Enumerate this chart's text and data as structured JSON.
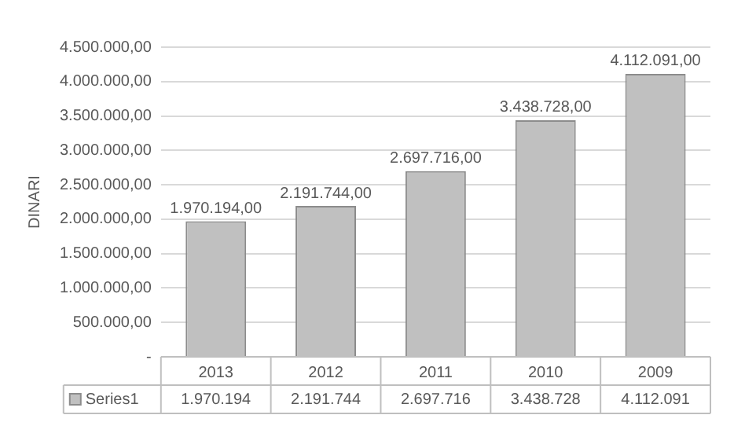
{
  "chart_data": {
    "type": "bar",
    "ylabel": "DINARI",
    "categories": [
      "2013",
      "2012",
      "2011",
      "2010",
      "2009"
    ],
    "series": [
      {
        "name": "Series1",
        "color": "#c0c0c0",
        "values": [
          1970194,
          2191744,
          2697716,
          3438728,
          4112091
        ],
        "value_labels": [
          "1.970.194,00",
          "2.191.744,00",
          "2.697.716,00",
          "3.438.728,00",
          "4.112.091,00"
        ]
      }
    ],
    "ylim": [
      0,
      4500000
    ],
    "yticks": [
      {
        "value": 0,
        "label": "-"
      },
      {
        "value": 500000,
        "label": "500.000,00"
      },
      {
        "value": 1000000,
        "label": "1.000.000,00"
      },
      {
        "value": 1500000,
        "label": "1.500.000,00"
      },
      {
        "value": 2000000,
        "label": "2.000.000,00"
      },
      {
        "value": 2500000,
        "label": "2.500.000,00"
      },
      {
        "value": 3000000,
        "label": "3.000.000,00"
      },
      {
        "value": 3500000,
        "label": "3.500.000,00"
      },
      {
        "value": 4000000,
        "label": "4.000.000,00"
      },
      {
        "value": 4500000,
        "label": "4.500.000,00"
      }
    ],
    "grid": "y",
    "legend": "bottom",
    "annotations": [
      "1.970.194",
      "2.191.744",
      "2.697.716",
      "3.438.728",
      "4.112.091"
    ]
  }
}
